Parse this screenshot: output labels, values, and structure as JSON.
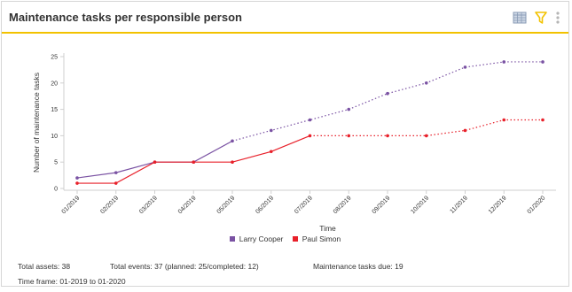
{
  "widget": {
    "title": "Maintenance tasks per responsible person",
    "icons": [
      "table-icon",
      "filter-icon",
      "more-vertical-icon"
    ]
  },
  "colors": {
    "accent": "#f2c200",
    "larry": "#7a52a3",
    "paul": "#e8202a",
    "grid": "#e6e6e6"
  },
  "chart_data": {
    "type": "line",
    "xlabel": "Time",
    "ylabel": "Number of maintenance tasks",
    "ylim": [
      0,
      25
    ],
    "yticks": [
      0,
      5,
      10,
      15,
      20,
      25
    ],
    "categories": [
      "01/2019",
      "02/2019",
      "03/2019",
      "04/2019",
      "05/2019",
      "06/2019",
      "07/2019",
      "08/2019",
      "09/2019",
      "10/2019",
      "11/2019",
      "12/2019",
      "01/2020"
    ],
    "series": [
      {
        "name": "Larry Cooper",
        "values": [
          2,
          3,
          5,
          5,
          9,
          11,
          13,
          15,
          18,
          20,
          23,
          24,
          24
        ],
        "solid_until_index": 4
      },
      {
        "name": "Paul Simon",
        "values": [
          1,
          1,
          5,
          5,
          5,
          7,
          10,
          10,
          10,
          10,
          11,
          13,
          13
        ],
        "solid_until_index": 6
      }
    ],
    "legend_position": "bottom-center",
    "grid": false
  },
  "footer": {
    "total_assets": "Total assets: 38",
    "total_events": "Total events: 37 (planned: 25/completed: 12)",
    "tasks_due": "Maintenance tasks due: 19",
    "time_frame": "Time frame: 01-2019 to 01-2020"
  }
}
